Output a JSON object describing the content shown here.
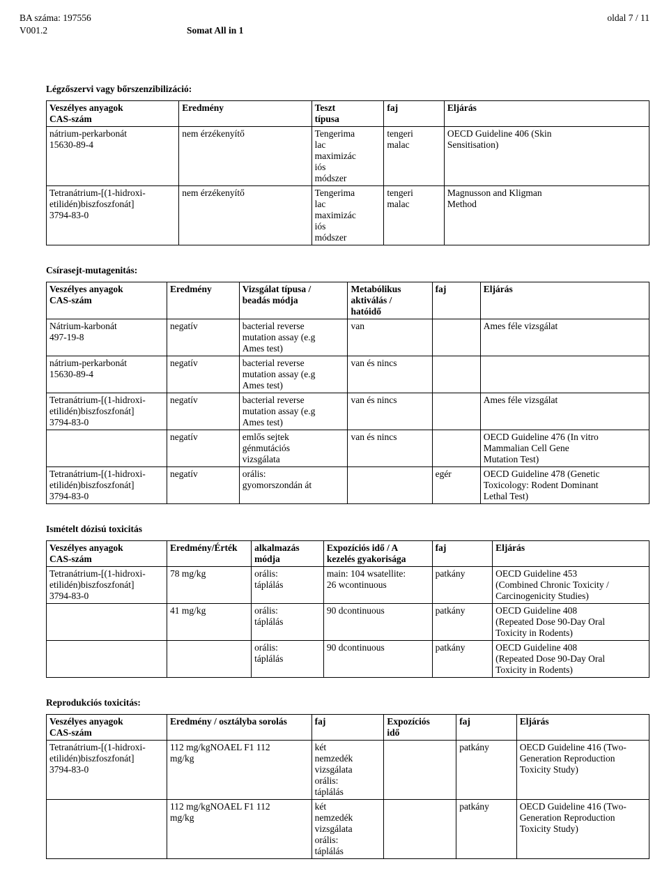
{
  "header": {
    "ba_line": "BA száma: 197556",
    "ver_line": "V001.2",
    "title": "Somat All in 1",
    "page": "oldal 7 / 11"
  },
  "section1": {
    "title": "Légzőszervi vagy bőrszenzibilizáció:",
    "columns": [
      "Veszélyes anyagok\nCAS-szám",
      "Eredmény",
      "Teszt\ntípusa",
      "faj",
      "Eljárás"
    ],
    "rows": [
      [
        "nátrium-perkarbonát\n15630-89-4",
        "nem érzékenyítő",
        "Tengerima\nlac\nmaximizác\niós\nmódszer",
        "tengeri\nmalac",
        "OECD Guideline 406 (Skin\nSensitisation)"
      ],
      [
        "Tetranátrium-[(1-hidroxi-\netilidén)biszfoszfonát]\n3794-83-0",
        "nem érzékenyítő",
        "Tengerima\nlac\nmaximizác\niós\nmódszer",
        "tengeri\nmalac",
        "Magnusson and Kligman\nMethod"
      ]
    ]
  },
  "section2": {
    "title": "Csírasejt-mutagenitás:",
    "columns": [
      "Veszélyes anyagok\nCAS-szám",
      "Eredmény",
      "Vizsgálat típusa /\nbeadás módja",
      "Metabólikus\naktiválás /\nhatóidő",
      "faj",
      "Eljárás"
    ],
    "rows": [
      [
        "Nátrium-karbonát\n497-19-8",
        "negatív",
        "bacterial reverse\nmutation assay (e.g\nAmes test)",
        "van",
        "",
        "Ames féle vizsgálat"
      ],
      [
        "nátrium-perkarbonát\n15630-89-4",
        "negatív",
        "bacterial reverse\nmutation assay (e.g\nAmes test)",
        "van és nincs",
        "",
        ""
      ],
      [
        "Tetranátrium-[(1-hidroxi-\netilidén)biszfoszfonát]\n3794-83-0",
        "negatív",
        "bacterial reverse\nmutation assay (e.g\nAmes test)",
        "van és nincs",
        "",
        "Ames féle vizsgálat"
      ],
      [
        "",
        "negatív",
        "emlős sejtek\ngénmutációs\nvizsgálata",
        "van és nincs",
        "",
        "OECD Guideline 476 (In vitro\nMammalian Cell Gene\nMutation Test)"
      ],
      [
        "Tetranátrium-[(1-hidroxi-\netilidén)biszfoszfonát]\n3794-83-0",
        "negatív",
        "orális:\ngyomorszondán át",
        "",
        "egér",
        "OECD Guideline 478 (Genetic\nToxicology: Rodent Dominant\nLethal Test)"
      ]
    ]
  },
  "section3": {
    "title": "Ismételt dózisú toxicitás",
    "columns": [
      "Veszélyes anyagok\nCAS-szám",
      "Eredmény/Érték",
      "alkalmazás\nmódja",
      "Expozíciós idő / A\nkezelés gyakorisága",
      "faj",
      "Eljárás"
    ],
    "rows": [
      [
        "Tetranátrium-[(1-hidroxi-\netilidén)biszfoszfonát]\n3794-83-0",
        "78 mg/kg",
        "orális:\ntáplálás",
        "main: 104 wsatellite:\n26 wcontinuous",
        "patkány",
        "OECD Guideline 453\n(Combined Chronic Toxicity /\nCarcinogenicity Studies)"
      ],
      [
        "",
        "41 mg/kg",
        "orális:\ntáplálás",
        "90 dcontinuous",
        "patkány",
        "OECD Guideline 408\n(Repeated Dose 90-Day Oral\nToxicity in Rodents)"
      ],
      [
        "",
        "",
        "orális:\ntáplálás",
        "90 dcontinuous",
        "patkány",
        "OECD Guideline 408\n(Repeated Dose 90-Day Oral\nToxicity in Rodents)"
      ]
    ]
  },
  "section4": {
    "title": "Reprodukciós toxicitás:",
    "columns": [
      "Veszélyes anyagok\nCAS-szám",
      "Eredmény / osztályba sorolás",
      "faj",
      "Expozíciós\nidő",
      "faj",
      "Eljárás"
    ],
    "rows": [
      [
        "Tetranátrium-[(1-hidroxi-\netilidén)biszfoszfonát]\n3794-83-0",
        "112 mg/kgNOAEL F1 112\nmg/kg",
        "két\nnemzedék\nvizsgálata\norális:\ntáplálás",
        "",
        "patkány",
        "OECD Guideline 416 (Two-\nGeneration Reproduction\nToxicity Study)"
      ],
      [
        "",
        "112 mg/kgNOAEL F1 112\nmg/kg",
        "két\nnemzedék\nvizsgálata\norális:\ntáplálás",
        "",
        "patkány",
        "OECD Guideline 416 (Two-\nGeneration Reproduction\nToxicity Study)"
      ]
    ]
  },
  "colwidths": {
    "section1": [
      "22%",
      "22%",
      "12%",
      "10%",
      "34%"
    ],
    "section2": [
      "20%",
      "12%",
      "18%",
      "14%",
      "8%",
      "28%"
    ],
    "section3": [
      "20%",
      "14%",
      "12%",
      "18%",
      "10%",
      "26%"
    ],
    "section4": [
      "20%",
      "24%",
      "12%",
      "12%",
      "10%",
      "22%"
    ]
  }
}
